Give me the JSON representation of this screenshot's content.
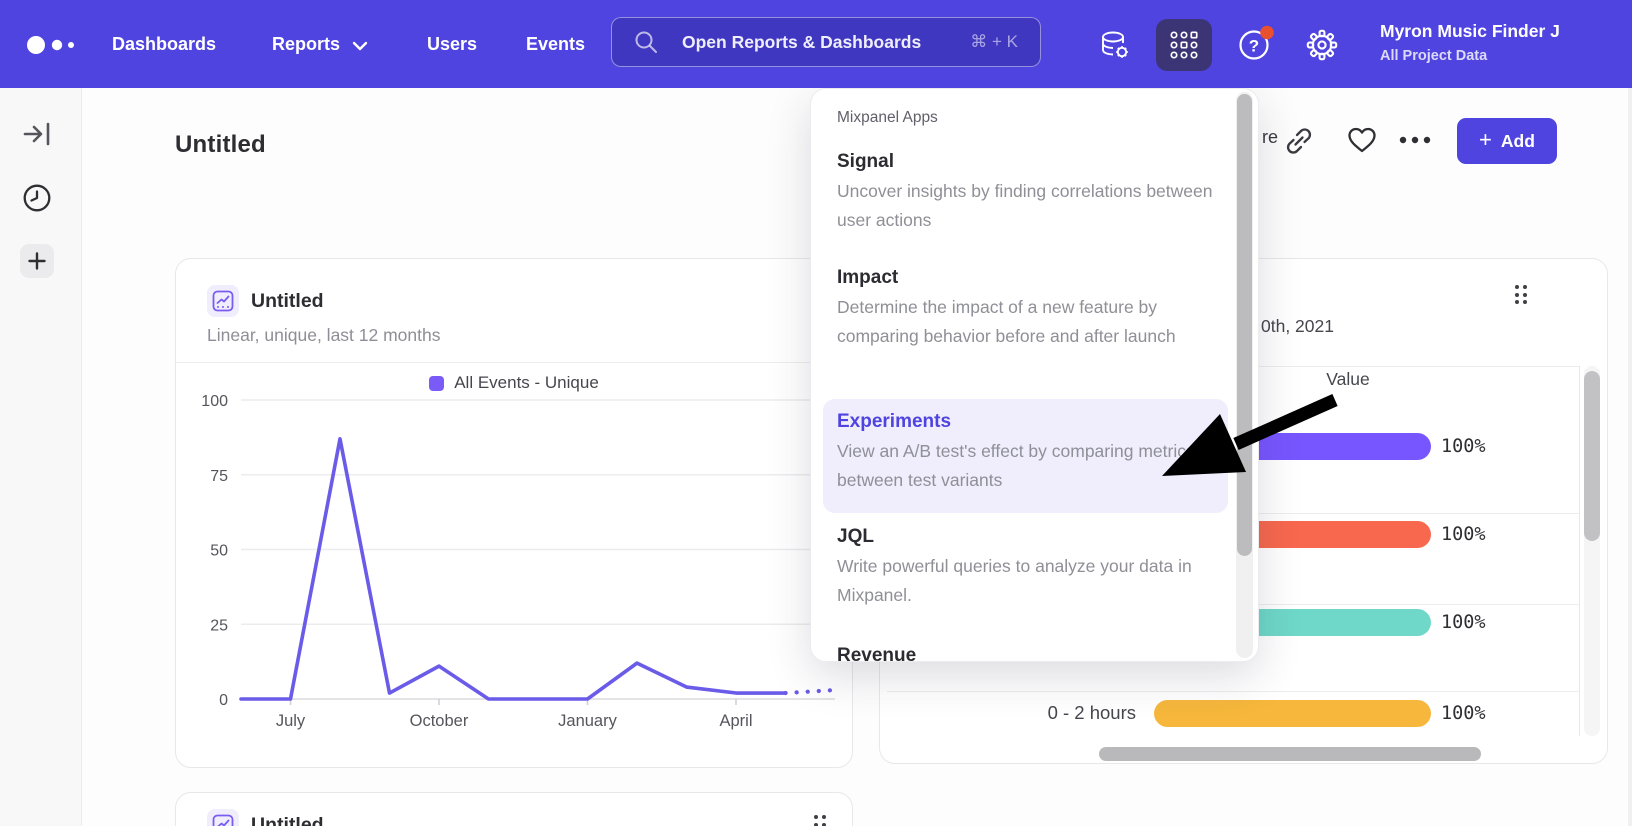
{
  "colors": {
    "nav_bg": "#4f44e0",
    "accent": "#4f44e0",
    "line_series": "#6a5be8",
    "legend_swatch": "#7a5bf7",
    "notification_dot": "#e8502f",
    "highlight_bg": "#f0eefc"
  },
  "nav": {
    "items": [
      "Dashboards",
      "Reports",
      "Users",
      "Events"
    ],
    "search_placeholder": "Open Reports & Dashboards",
    "search_shortcut": "⌘ + K",
    "user_name": "Myron Music Finder J",
    "user_project": "All Project Data"
  },
  "page": {
    "title": "Untitled",
    "share_fragment": "re",
    "add_button": "Add",
    "add_plus": "+"
  },
  "apps_menu": {
    "header": "Mixpanel Apps",
    "items": [
      {
        "name": "Signal",
        "desc": "Uncover insights by finding correlations between user actions",
        "active": false
      },
      {
        "name": "Impact",
        "desc": "Determine the impact of a new feature by comparing behavior before and after launch",
        "active": false
      },
      {
        "name": "Experiments",
        "desc": "View an A/B test's effect by comparing metrics between test variants",
        "active": true
      },
      {
        "name": "JQL",
        "desc": "Write powerful queries to analyze your data in Mixpanel.",
        "active": false
      },
      {
        "name": "Revenue",
        "desc": "",
        "active": false,
        "clipped": true
      }
    ]
  },
  "line_card": {
    "title": "Untitled",
    "subtitle": "Linear, unique, last 12 months",
    "legend": "All Events - Unique"
  },
  "value_card": {
    "date_fragment": "0th, 2021",
    "column_header": "Value",
    "rows": [
      {
        "label": "",
        "value": "100%",
        "color": "#7856ff"
      },
      {
        "label": "",
        "value": "100%",
        "color": "#f8684e"
      },
      {
        "label": "",
        "value": "100%",
        "color": "#6fd8c8"
      },
      {
        "label": "0 - 2 hours",
        "value": "100%",
        "color": "#f6b73c"
      }
    ]
  },
  "bottom_card": {
    "title": "Untitled"
  },
  "chart_data": [
    {
      "type": "line",
      "title": "Untitled",
      "subtitle": "Linear, unique, last 12 months",
      "series": [
        {
          "name": "All Events - Unique",
          "color": "#6a5be8",
          "values": [
            0,
            0,
            87,
            2,
            11,
            0,
            0,
            0,
            12,
            4,
            2,
            2,
            3
          ]
        }
      ],
      "n_points": 13,
      "x_tick_labels": [
        "July",
        "October",
        "January",
        "April"
      ],
      "x_tick_indices": [
        1,
        4,
        7,
        10
      ],
      "yticks": [
        0,
        25,
        50,
        75,
        100
      ],
      "ylim": [
        0,
        100
      ],
      "grid": true,
      "legend_position": "top-center",
      "dotted_tail_from_index": 11
    },
    {
      "type": "bar",
      "orientation": "horizontal",
      "column_header": "Value",
      "date_fragment": "0th, 2021",
      "categories": [
        "",
        "",
        "",
        "0 - 2 hours"
      ],
      "values": [
        100,
        100,
        100,
        100
      ],
      "value_labels": [
        "100%",
        "100%",
        "100%",
        "100%"
      ],
      "colors": [
        "#7856ff",
        "#f8684e",
        "#6fd8c8",
        "#f6b73c"
      ],
      "xlim": [
        0,
        100
      ]
    }
  ]
}
